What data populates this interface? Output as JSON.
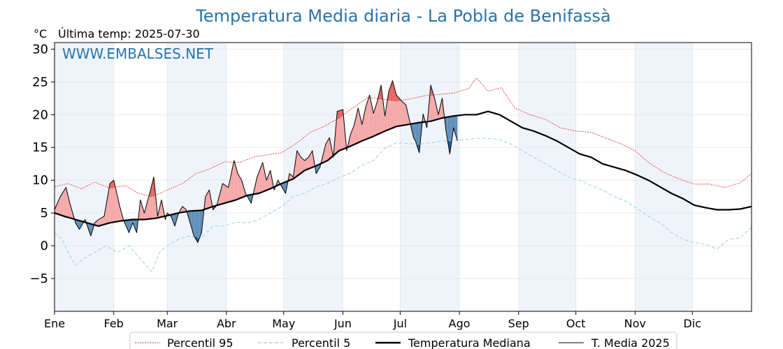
{
  "chart_data": {
    "type": "line",
    "title": "Temperatura Media diaria - La Pobla de Benifassà",
    "unit_label": "°C",
    "last_reading": "Última temp: 2025-07-30",
    "watermark": "WWW.EMBALSES.NET",
    "ylim": [
      -10,
      31
    ],
    "yticks": [
      30,
      25,
      20,
      15,
      10,
      5,
      0,
      -5
    ],
    "ytick_labels": [
      "30",
      "25",
      "20",
      "15",
      "10",
      "5",
      "0",
      "−5"
    ],
    "x_axis": "day_of_year",
    "xlim": [
      1,
      366
    ],
    "month_ticks": [
      "Ene",
      "Feb",
      "Mar",
      "Abr",
      "May",
      "Jun",
      "Jul",
      "Ago",
      "Sep",
      "Oct",
      "Nov",
      "Dic"
    ],
    "month_start_days": [
      1,
      32,
      60,
      91,
      121,
      152,
      182,
      213,
      244,
      274,
      305,
      335
    ],
    "grid": true,
    "legend_position": "bottom",
    "colors": {
      "p95": "#e8201e",
      "p5": "#9ccfe0",
      "median": "#000000",
      "current": "#000000",
      "above_fill": "#f4a6a6",
      "above_p95_fill": "#ee6060",
      "below_fill": "#5b8db8",
      "below_p5_fill": "#1f5c99",
      "month_band": "#eef4fa"
    },
    "series": [
      {
        "name": "Percentil 95",
        "key": "p95",
        "points": [
          [
            1,
            9
          ],
          [
            8,
            9.5
          ],
          [
            15,
            8.7
          ],
          [
            22,
            9.7
          ],
          [
            30,
            8.8
          ],
          [
            38,
            9.2
          ],
          [
            45,
            8.0
          ],
          [
            52,
            7.5
          ],
          [
            60,
            8.5
          ],
          [
            68,
            9.5
          ],
          [
            75,
            11
          ],
          [
            82,
            11.7
          ],
          [
            90,
            12.8
          ],
          [
            98,
            12.7
          ],
          [
            106,
            13.6
          ],
          [
            113,
            13.9
          ],
          [
            120,
            14.2
          ],
          [
            128,
            15.7
          ],
          [
            135,
            17.3
          ],
          [
            142,
            18.2
          ],
          [
            150,
            19.5
          ],
          [
            158,
            21.2
          ],
          [
            165,
            22.6
          ],
          [
            172,
            22.4
          ],
          [
            180,
            22.1
          ],
          [
            187,
            22.4
          ],
          [
            195,
            22.9
          ],
          [
            203,
            23.1
          ],
          [
            210,
            23.3
          ],
          [
            218,
            24.0
          ],
          [
            222,
            25.6
          ],
          [
            228,
            23.6
          ],
          [
            235,
            24.1
          ],
          [
            242,
            21.0
          ],
          [
            250,
            20.0
          ],
          [
            258,
            19.3
          ],
          [
            266,
            18.0
          ],
          [
            274,
            17.5
          ],
          [
            282,
            17.3
          ],
          [
            290,
            16.4
          ],
          [
            298,
            15.5
          ],
          [
            305,
            14.5
          ],
          [
            312,
            12.7
          ],
          [
            320,
            11.2
          ],
          [
            328,
            10.2
          ],
          [
            336,
            9.4
          ],
          [
            344,
            9.4
          ],
          [
            352,
            8.9
          ],
          [
            360,
            9.6
          ],
          [
            366,
            11
          ]
        ]
      },
      {
        "name": "Percentil 5",
        "key": "p5",
        "points": [
          [
            1,
            2
          ],
          [
            5,
            1
          ],
          [
            8,
            -1
          ],
          [
            12,
            -3
          ],
          [
            16,
            -2
          ],
          [
            22,
            -1
          ],
          [
            28,
            0
          ],
          [
            34,
            -1
          ],
          [
            40,
            0
          ],
          [
            46,
            -2
          ],
          [
            52,
            -4
          ],
          [
            56,
            -1
          ],
          [
            60,
            0
          ],
          [
            66,
            1
          ],
          [
            72,
            1.5
          ],
          [
            78,
            1.2
          ],
          [
            84,
            3
          ],
          [
            90,
            3
          ],
          [
            96,
            3.6
          ],
          [
            102,
            3.5
          ],
          [
            108,
            4
          ],
          [
            114,
            5
          ],
          [
            120,
            6
          ],
          [
            126,
            7.5
          ],
          [
            132,
            8
          ],
          [
            138,
            9
          ],
          [
            144,
            9.5
          ],
          [
            150,
            10.4
          ],
          [
            156,
            11.1
          ],
          [
            162,
            12.3
          ],
          [
            168,
            13
          ],
          [
            174,
            14.9
          ],
          [
            180,
            15.7
          ],
          [
            186,
            15.6
          ],
          [
            192,
            15.5
          ],
          [
            198,
            15.7
          ],
          [
            204,
            16.0
          ],
          [
            210,
            16.1
          ],
          [
            216,
            16.2
          ],
          [
            222,
            16.4
          ],
          [
            228,
            16.4
          ],
          [
            234,
            16.2
          ],
          [
            240,
            15.5
          ],
          [
            246,
            14.5
          ],
          [
            252,
            13.5
          ],
          [
            258,
            12.5
          ],
          [
            264,
            11.5
          ],
          [
            270,
            10.5
          ],
          [
            276,
            10.0
          ],
          [
            282,
            9.2
          ],
          [
            288,
            8.5
          ],
          [
            294,
            7.5
          ],
          [
            300,
            6.8
          ],
          [
            306,
            5.7
          ],
          [
            312,
            4.5
          ],
          [
            318,
            3.5
          ],
          [
            324,
            2.0
          ],
          [
            330,
            1.0
          ],
          [
            336,
            0.5
          ],
          [
            342,
            0.2
          ],
          [
            348,
            -0.5
          ],
          [
            354,
            1.0
          ],
          [
            360,
            1.2
          ],
          [
            366,
            2.8
          ]
        ]
      },
      {
        "name": "Temperatura Mediana",
        "key": "median",
        "points": [
          [
            1,
            5.0
          ],
          [
            6,
            4.5
          ],
          [
            12,
            4.0
          ],
          [
            18,
            3.5
          ],
          [
            24,
            3.0
          ],
          [
            30,
            3.5
          ],
          [
            36,
            3.8
          ],
          [
            42,
            4.0
          ],
          [
            48,
            4.0
          ],
          [
            54,
            4.2
          ],
          [
            60,
            4.6
          ],
          [
            66,
            5.0
          ],
          [
            72,
            5.3
          ],
          [
            78,
            5.4
          ],
          [
            84,
            6.0
          ],
          [
            90,
            6.5
          ],
          [
            96,
            7.0
          ],
          [
            102,
            7.7
          ],
          [
            108,
            8.0
          ],
          [
            114,
            8.7
          ],
          [
            120,
            9.5
          ],
          [
            126,
            10.2
          ],
          [
            132,
            11.5
          ],
          [
            138,
            12.2
          ],
          [
            144,
            13.0
          ],
          [
            150,
            14.5
          ],
          [
            156,
            15.2
          ],
          [
            162,
            16.0
          ],
          [
            168,
            16.7
          ],
          [
            174,
            17.5
          ],
          [
            180,
            18.2
          ],
          [
            186,
            18.5
          ],
          [
            192,
            18.8
          ],
          [
            198,
            19.0
          ],
          [
            204,
            19.5
          ],
          [
            210,
            19.8
          ],
          [
            216,
            20.0
          ],
          [
            222,
            20.0
          ],
          [
            228,
            20.5
          ],
          [
            234,
            20.0
          ],
          [
            240,
            19.0
          ],
          [
            246,
            18.0
          ],
          [
            252,
            17.5
          ],
          [
            258,
            16.8
          ],
          [
            264,
            16.0
          ],
          [
            270,
            15.0
          ],
          [
            276,
            14.0
          ],
          [
            282,
            13.5
          ],
          [
            288,
            12.5
          ],
          [
            294,
            12.0
          ],
          [
            300,
            11.5
          ],
          [
            306,
            10.8
          ],
          [
            312,
            10.0
          ],
          [
            318,
            9.0
          ],
          [
            324,
            8.0
          ],
          [
            330,
            7.2
          ],
          [
            336,
            6.2
          ],
          [
            342,
            5.8
          ],
          [
            348,
            5.5
          ],
          [
            354,
            5.5
          ],
          [
            360,
            5.6
          ],
          [
            366,
            6.0
          ]
        ]
      },
      {
        "name": "T. Media 2025",
        "key": "current",
        "points": [
          [
            1,
            5.5
          ],
          [
            4,
            7.5
          ],
          [
            7,
            8.9
          ],
          [
            9,
            6.5
          ],
          [
            12,
            3.5
          ],
          [
            14,
            2.5
          ],
          [
            17,
            4.0
          ],
          [
            20,
            1.5
          ],
          [
            22,
            3.5
          ],
          [
            24,
            4.0
          ],
          [
            27,
            4.5
          ],
          [
            30,
            9.5
          ],
          [
            32,
            10.0
          ],
          [
            35,
            6.2
          ],
          [
            37,
            4.0
          ],
          [
            40,
            2.0
          ],
          [
            42,
            3.5
          ],
          [
            44,
            2.0
          ],
          [
            46,
            7.0
          ],
          [
            48,
            5.0
          ],
          [
            51,
            8.2
          ],
          [
            53,
            10.5
          ],
          [
            55,
            4.5
          ],
          [
            57,
            7.0
          ],
          [
            59,
            4.0
          ],
          [
            60,
            5.0
          ],
          [
            62,
            4.5
          ],
          [
            64,
            3.0
          ],
          [
            66,
            5.0
          ],
          [
            68,
            6.0
          ],
          [
            70,
            5.5
          ],
          [
            72,
            3.5
          ],
          [
            74,
            1.5
          ],
          [
            76,
            0.5
          ],
          [
            78,
            2.0
          ],
          [
            80,
            7.5
          ],
          [
            82,
            8.5
          ],
          [
            84,
            5.5
          ],
          [
            86,
            6.2
          ],
          [
            89,
            9.5
          ],
          [
            92,
            8.9
          ],
          [
            95,
            13.0
          ],
          [
            97,
            11.0
          ],
          [
            99,
            10.0
          ],
          [
            101,
            8.0
          ],
          [
            104,
            6.5
          ],
          [
            107,
            10.4
          ],
          [
            110,
            12.7
          ],
          [
            112,
            10.0
          ],
          [
            114,
            11.5
          ],
          [
            116,
            8.5
          ],
          [
            118,
            10.0
          ],
          [
            120,
            9.0
          ],
          [
            122,
            8.0
          ],
          [
            124,
            11.0
          ],
          [
            126,
            10.5
          ],
          [
            128,
            14.5
          ],
          [
            130,
            13.5
          ],
          [
            132,
            13.0
          ],
          [
            134,
            13.5
          ],
          [
            136,
            14.5
          ],
          [
            138,
            11.0
          ],
          [
            140,
            12.0
          ],
          [
            143,
            15.5
          ],
          [
            145,
            16.5
          ],
          [
            147,
            13.5
          ],
          [
            149,
            20.5
          ],
          [
            152,
            20.8
          ],
          [
            154,
            14.5
          ],
          [
            156,
            17.0
          ],
          [
            158,
            18.5
          ],
          [
            160,
            21.0
          ],
          [
            162,
            18.5
          ],
          [
            164,
            21.2
          ],
          [
            166,
            23.0
          ],
          [
            168,
            20.2
          ],
          [
            170,
            22.0
          ],
          [
            172,
            24.5
          ],
          [
            174,
            19.8
          ],
          [
            176,
            23.5
          ],
          [
            178,
            25.2
          ],
          [
            180,
            23.0
          ],
          [
            183,
            22.0
          ],
          [
            185,
            21.5
          ],
          [
            187,
            19.0
          ],
          [
            189,
            16.5
          ],
          [
            190,
            16.0
          ],
          [
            192,
            14.2
          ],
          [
            194,
            20.1
          ],
          [
            196,
            18.0
          ],
          [
            198,
            24.5
          ],
          [
            200,
            22.5
          ],
          [
            202,
            20.0
          ],
          [
            204,
            22.5
          ],
          [
            206,
            17.5
          ],
          [
            208,
            14.0
          ],
          [
            210,
            18.0
          ],
          [
            212,
            16.0
          ]
        ]
      }
    ]
  }
}
